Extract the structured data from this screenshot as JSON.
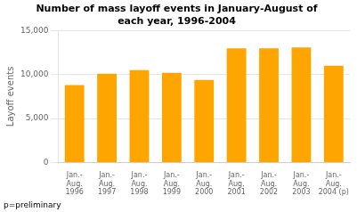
{
  "chart_data": {
    "type": "bar",
    "title": "Number of mass layoff events in January-August of\neach year, 1996-2004",
    "ylabel": "Layoff events",
    "categories": [
      "Jan.-\nAug.\n1996",
      "Jan.-\nAug.\n1997",
      "Jan.-\nAug.\n1998",
      "Jan.-\nAug.\n1999",
      "Jan.-\nAug.\n2000",
      "Jan.-\nAug.\n2001",
      "Jan.-\nAug.\n2002",
      "Jan.-\nAug.\n2003",
      "Jan.-\nAug.\n2004 (p)"
    ],
    "values": [
      8800,
      10100,
      10500,
      10200,
      9400,
      13000,
      13000,
      13100,
      11000
    ],
    "color": "#FFA500",
    "ylim": [
      0,
      15000
    ],
    "yticks": [
      0,
      {
        "value": 5000,
        "label": "5,000"
      },
      {
        "value": 10000,
        "label": "10,000"
      },
      {
        "value": 15000,
        "label": "15,000"
      }
    ],
    "grid": true,
    "footnote": "p=preliminary"
  }
}
